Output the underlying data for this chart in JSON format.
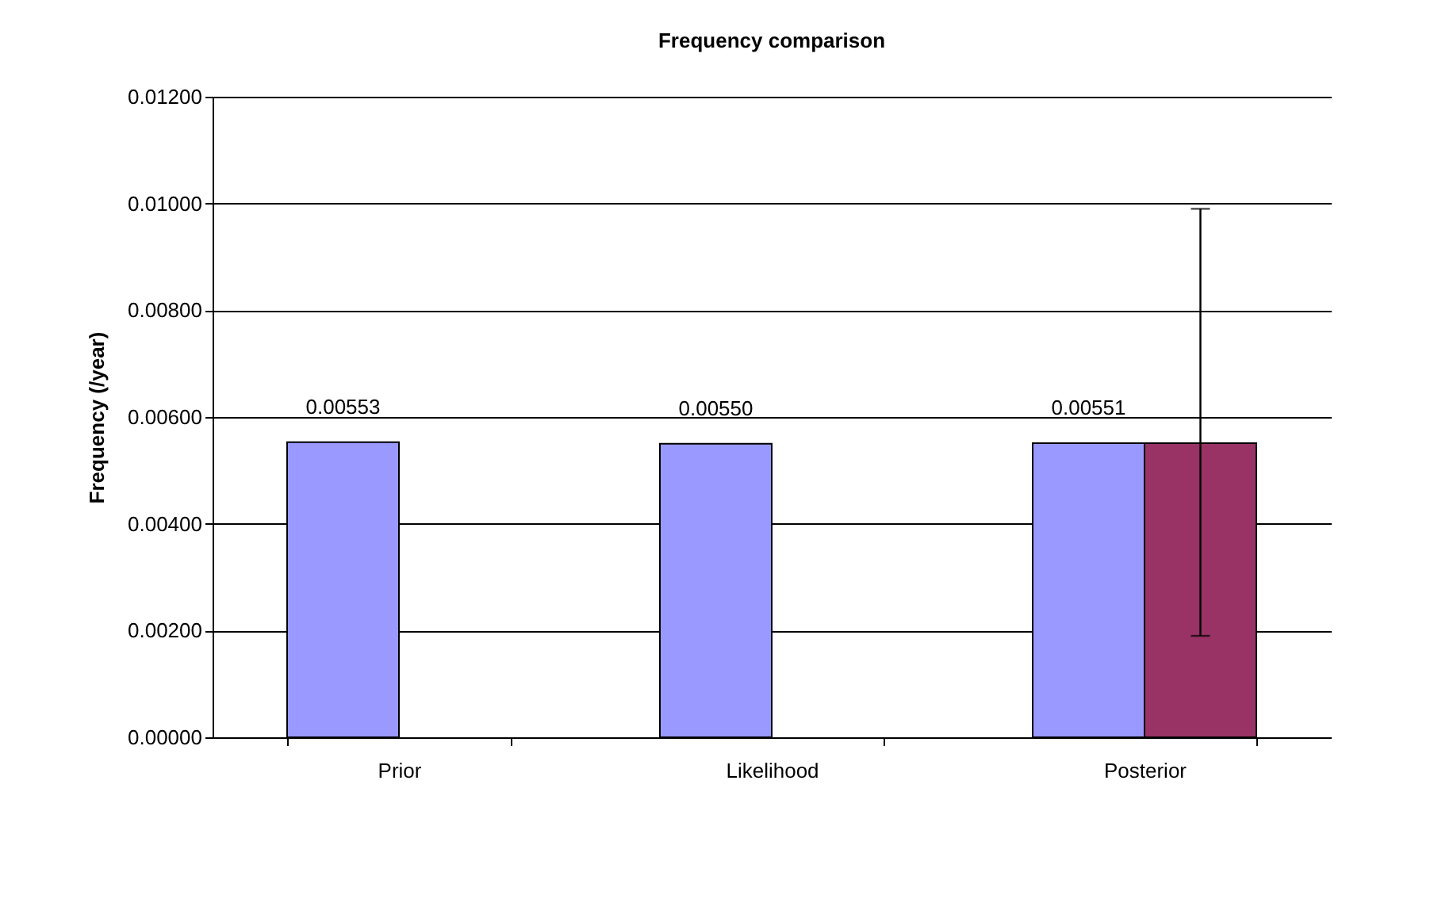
{
  "chart_data": {
    "type": "bar",
    "title": "Frequency comparison",
    "ylabel": "Frequency (/year)",
    "categories": [
      "Prior",
      "Likelihood",
      "Posterior"
    ],
    "series": [
      {
        "color": "#9999ff",
        "values": [
          0.00553,
          0.0055,
          0.00551
        ],
        "value_labels": [
          "0.00553",
          "0.00550",
          "0.00551"
        ]
      },
      {
        "color": "#993366",
        "values": [
          null,
          null,
          0.00551
        ],
        "errors": [
          null,
          null,
          [
            0.0019,
            0.0099
          ]
        ]
      }
    ],
    "ylim": [
      0,
      0.012
    ],
    "yticks": [
      {
        "value": 0,
        "label": "0.00000"
      },
      {
        "value": 0.002,
        "label": "0.00200"
      },
      {
        "value": 0.004,
        "label": "0.00400"
      },
      {
        "value": 0.006,
        "label": "0.00600"
      },
      {
        "value": 0.008,
        "label": "0.00800"
      },
      {
        "value": 0.01,
        "label": "0.01000"
      },
      {
        "value": 0.012,
        "label": "0.01200"
      }
    ],
    "grid": "y",
    "legend": false
  }
}
